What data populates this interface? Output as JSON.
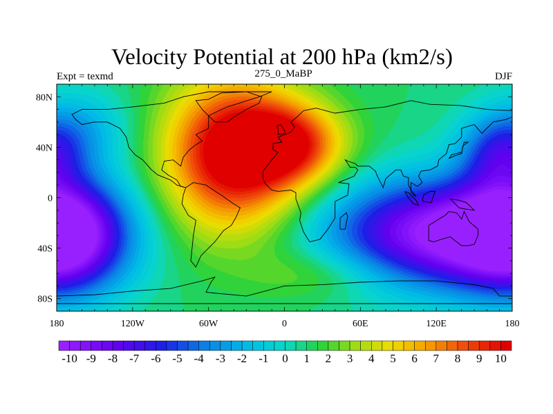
{
  "chart_data": {
    "type": "heatmap",
    "title": "Velocity Potential at 200 hPa (km2/s)",
    "left_label": "Expt = texmd",
    "center_label": "275_0_MaBP",
    "right_label": "DJF",
    "xlim": [
      -180,
      180
    ],
    "ylim": [
      -90,
      90
    ],
    "x_ticks": [
      {
        "value": -180,
        "label": "180"
      },
      {
        "value": -120,
        "label": "120W"
      },
      {
        "value": -60,
        "label": "60W"
      },
      {
        "value": 0,
        "label": "0"
      },
      {
        "value": 60,
        "label": "60E"
      },
      {
        "value": 120,
        "label": "120E"
      },
      {
        "value": 180,
        "label": "180"
      }
    ],
    "y_ticks": [
      {
        "value": 80,
        "label": "80N"
      },
      {
        "value": 40,
        "label": "40N"
      },
      {
        "value": 0,
        "label": "0"
      },
      {
        "value": -40,
        "label": "40S"
      },
      {
        "value": -80,
        "label": "80S"
      }
    ],
    "colorbar": {
      "min": -10.5,
      "max": 10.5,
      "step": 0.5,
      "labels": [
        -10,
        -9,
        -8,
        -7,
        -6,
        -5,
        -4,
        -3,
        -2,
        -1,
        0,
        1,
        2,
        3,
        4,
        5,
        6,
        7,
        8,
        9,
        10
      ]
    },
    "field_centers": [
      {
        "lon": -40,
        "lat": 35,
        "value": 10.5,
        "lon_sigma": 38,
        "lat_sigma": 42
      },
      {
        "lon": 5,
        "lat": 42,
        "value": 7.0,
        "lon_sigma": 30,
        "lat_sigma": 22
      },
      {
        "lon": 120,
        "lat": -28,
        "value": -10.8,
        "lon_sigma": 60,
        "lat_sigma": 30
      },
      {
        "lon": -175,
        "lat": -30,
        "value": -10.5,
        "lon_sigma": 35,
        "lat_sigma": 32
      },
      {
        "lon": 170,
        "lat": 35,
        "value": -5.0,
        "lon_sigma": 22,
        "lat_sigma": 20
      },
      {
        "lon": -165,
        "lat": 55,
        "value": -3.0,
        "lon_sigma": 30,
        "lat_sigma": 22
      },
      {
        "lon": 30,
        "lat": -60,
        "value": 2.0,
        "lon_sigma": 40,
        "lat_sigma": 15
      }
    ],
    "coastlines": [
      {
        "name": "greenland",
        "points": [
          [
            -55,
            60
          ],
          [
            -45,
            60
          ],
          [
            -40,
            64
          ],
          [
            -30,
            70
          ],
          [
            -20,
            75
          ],
          [
            -18,
            80
          ],
          [
            -30,
            84
          ],
          [
            -50,
            83
          ],
          [
            -60,
            78
          ],
          [
            -70,
            77
          ],
          [
            -65,
            70
          ],
          [
            -55,
            60
          ]
        ]
      },
      {
        "name": "north-america",
        "points": [
          [
            -10,
            84
          ],
          [
            -20,
            80
          ],
          [
            -45,
            72
          ],
          [
            -60,
            65
          ],
          [
            -60,
            55
          ],
          [
            -70,
            50
          ],
          [
            -65,
            45
          ],
          [
            -70,
            42
          ],
          [
            -75,
            38
          ],
          [
            -80,
            32
          ],
          [
            -82,
            25
          ],
          [
            -88,
            30
          ],
          [
            -95,
            29
          ],
          [
            -97,
            22
          ],
          [
            -92,
            18
          ],
          [
            -85,
            14
          ],
          [
            -82,
            9
          ],
          [
            -78,
            8
          ],
          [
            -85,
            10
          ],
          [
            -90,
            14
          ],
          [
            -100,
            18
          ],
          [
            -105,
            22
          ],
          [
            -112,
            30
          ],
          [
            -118,
            34
          ],
          [
            -123,
            40
          ],
          [
            -125,
            48
          ],
          [
            -130,
            55
          ],
          [
            -140,
            60
          ],
          [
            -150,
            60
          ],
          [
            -160,
            58
          ],
          [
            -165,
            62
          ],
          [
            -168,
            66
          ],
          [
            -160,
            70
          ],
          [
            -140,
            70
          ],
          [
            -120,
            72
          ],
          [
            -95,
            75
          ],
          [
            -80,
            80
          ],
          [
            -60,
            84
          ],
          [
            -10,
            84
          ]
        ]
      },
      {
        "name": "south-america",
        "points": [
          [
            -78,
            8
          ],
          [
            -72,
            12
          ],
          [
            -62,
            10
          ],
          [
            -50,
            2
          ],
          [
            -40,
            -5
          ],
          [
            -35,
            -8
          ],
          [
            -38,
            -15
          ],
          [
            -42,
            -22
          ],
          [
            -48,
            -26
          ],
          [
            -55,
            -35
          ],
          [
            -60,
            -40
          ],
          [
            -66,
            -46
          ],
          [
            -70,
            -55
          ],
          [
            -74,
            -50
          ],
          [
            -73,
            -40
          ],
          [
            -72,
            -30
          ],
          [
            -70,
            -18
          ],
          [
            -76,
            -14
          ],
          [
            -81,
            -5
          ],
          [
            -80,
            2
          ],
          [
            -78,
            8
          ]
        ]
      },
      {
        "name": "africa-eurasia",
        "points": [
          [
            -17,
            15
          ],
          [
            -17,
            21
          ],
          [
            -10,
            30
          ],
          [
            -5,
            36
          ],
          [
            -9,
            38
          ],
          [
            -9,
            43
          ],
          [
            -2,
            44
          ],
          [
            -5,
            48
          ],
          [
            0,
            50
          ],
          [
            5,
            52
          ],
          [
            8,
            56
          ],
          [
            5,
            60
          ],
          [
            10,
            64
          ],
          [
            15,
            69
          ],
          [
            25,
            71
          ],
          [
            40,
            67
          ],
          [
            60,
            70
          ],
          [
            80,
            72
          ],
          [
            100,
            77
          ],
          [
            115,
            74
          ],
          [
            140,
            73
          ],
          [
            160,
            70
          ],
          [
            180,
            69
          ],
          [
            180,
            64
          ],
          [
            175,
            62
          ],
          [
            165,
            60
          ],
          [
            160,
            55
          ],
          [
            156,
            51
          ],
          [
            150,
            58
          ],
          [
            140,
            55
          ],
          [
            140,
            48
          ],
          [
            135,
            43
          ],
          [
            130,
            42
          ],
          [
            128,
            35
          ],
          [
            122,
            30
          ],
          [
            121,
            25
          ],
          [
            115,
            22
          ],
          [
            108,
            21
          ],
          [
            106,
            17
          ],
          [
            109,
            12
          ],
          [
            105,
            9
          ],
          [
            100,
            12
          ],
          [
            100,
            4
          ],
          [
            104,
            1
          ],
          [
            100,
            6
          ],
          [
            98,
            10
          ],
          [
            98,
            16
          ],
          [
            94,
            17
          ],
          [
            92,
            22
          ],
          [
            88,
            22
          ],
          [
            80,
            15
          ],
          [
            78,
            8
          ],
          [
            73,
            18
          ],
          [
            72,
            21
          ],
          [
            67,
            25
          ],
          [
            58,
            25
          ],
          [
            56,
            27
          ],
          [
            50,
            29
          ],
          [
            48,
            30
          ],
          [
            52,
            24
          ],
          [
            56,
            24
          ],
          [
            58,
            22
          ],
          [
            55,
            17
          ],
          [
            45,
            13
          ],
          [
            43,
            12
          ],
          [
            51,
            11
          ],
          [
            50,
            2
          ],
          [
            40,
            -3
          ],
          [
            40,
            -11
          ],
          [
            40,
            -16
          ],
          [
            35,
            -24
          ],
          [
            32,
            -28
          ],
          [
            28,
            -33
          ],
          [
            20,
            -35
          ],
          [
            18,
            -32
          ],
          [
            15,
            -27
          ],
          [
            12,
            -18
          ],
          [
            13,
            -12
          ],
          [
            9,
            -1
          ],
          [
            9,
            4
          ],
          [
            5,
            6
          ],
          [
            -5,
            5
          ],
          [
            -10,
            6
          ],
          [
            -15,
            11
          ],
          [
            -17,
            15
          ]
        ]
      },
      {
        "name": "madagascar",
        "points": [
          [
            44,
            -25
          ],
          [
            48,
            -25
          ],
          [
            50,
            -15
          ],
          [
            49,
            -12
          ],
          [
            44,
            -16
          ],
          [
            44,
            -25
          ]
        ]
      },
      {
        "name": "australia",
        "points": [
          [
            114,
            -22
          ],
          [
            114,
            -34
          ],
          [
            118,
            -35
          ],
          [
            124,
            -33
          ],
          [
            131,
            -31
          ],
          [
            136,
            -35
          ],
          [
            140,
            -38
          ],
          [
            145,
            -38
          ],
          [
            150,
            -37
          ],
          [
            153,
            -30
          ],
          [
            153,
            -25
          ],
          [
            146,
            -19
          ],
          [
            142,
            -11
          ],
          [
            140,
            -17
          ],
          [
            136,
            -12
          ],
          [
            130,
            -11
          ],
          [
            127,
            -14
          ],
          [
            122,
            -17
          ],
          [
            114,
            -22
          ]
        ]
      },
      {
        "name": "borneo",
        "points": [
          [
            109,
            -2
          ],
          [
            110,
            2
          ],
          [
            115,
            5
          ],
          [
            119,
            5
          ],
          [
            117,
            -1
          ],
          [
            116,
            -4
          ],
          [
            110,
            -3
          ],
          [
            109,
            -2
          ]
        ]
      },
      {
        "name": "sumatra",
        "points": [
          [
            95,
            5
          ],
          [
            98,
            4
          ],
          [
            104,
            -2
          ],
          [
            106,
            -6
          ],
          [
            102,
            -5
          ],
          [
            98,
            0
          ],
          [
            95,
            5
          ]
        ]
      },
      {
        "name": "japan",
        "points": [
          [
            130,
            31
          ],
          [
            132,
            34
          ],
          [
            136,
            35
          ],
          [
            140,
            36
          ],
          [
            141,
            40
          ],
          [
            142,
            44
          ],
          [
            145,
            44
          ],
          [
            141,
            41
          ],
          [
            140,
            35
          ],
          [
            134,
            33
          ],
          [
            130,
            31
          ]
        ]
      },
      {
        "name": "uk",
        "points": [
          [
            -5,
            50
          ],
          [
            1,
            51
          ],
          [
            -1,
            55
          ],
          [
            -3,
            58
          ],
          [
            -6,
            57
          ],
          [
            -5,
            54
          ],
          [
            -5,
            50
          ]
        ]
      },
      {
        "name": "new-guinea",
        "points": [
          [
            131,
            -1
          ],
          [
            138,
            -2
          ],
          [
            144,
            -4
          ],
          [
            150,
            -10
          ],
          [
            143,
            -9
          ],
          [
            138,
            -8
          ],
          [
            131,
            -1
          ]
        ]
      },
      {
        "name": "antarctica",
        "points": [
          [
            -180,
            -78
          ],
          [
            -150,
            -77
          ],
          [
            -120,
            -74
          ],
          [
            -90,
            -72
          ],
          [
            -65,
            -66
          ],
          [
            -55,
            -63
          ],
          [
            -58,
            -67
          ],
          [
            -62,
            -75
          ],
          [
            -30,
            -78
          ],
          [
            0,
            -70
          ],
          [
            30,
            -69
          ],
          [
            60,
            -67
          ],
          [
            90,
            -66
          ],
          [
            120,
            -66
          ],
          [
            150,
            -69
          ],
          [
            165,
            -72
          ],
          [
            170,
            -78
          ],
          [
            180,
            -78
          ],
          [
            180,
            -84
          ],
          [
            -180,
            -84
          ],
          [
            -180,
            -78
          ]
        ]
      }
    ]
  }
}
